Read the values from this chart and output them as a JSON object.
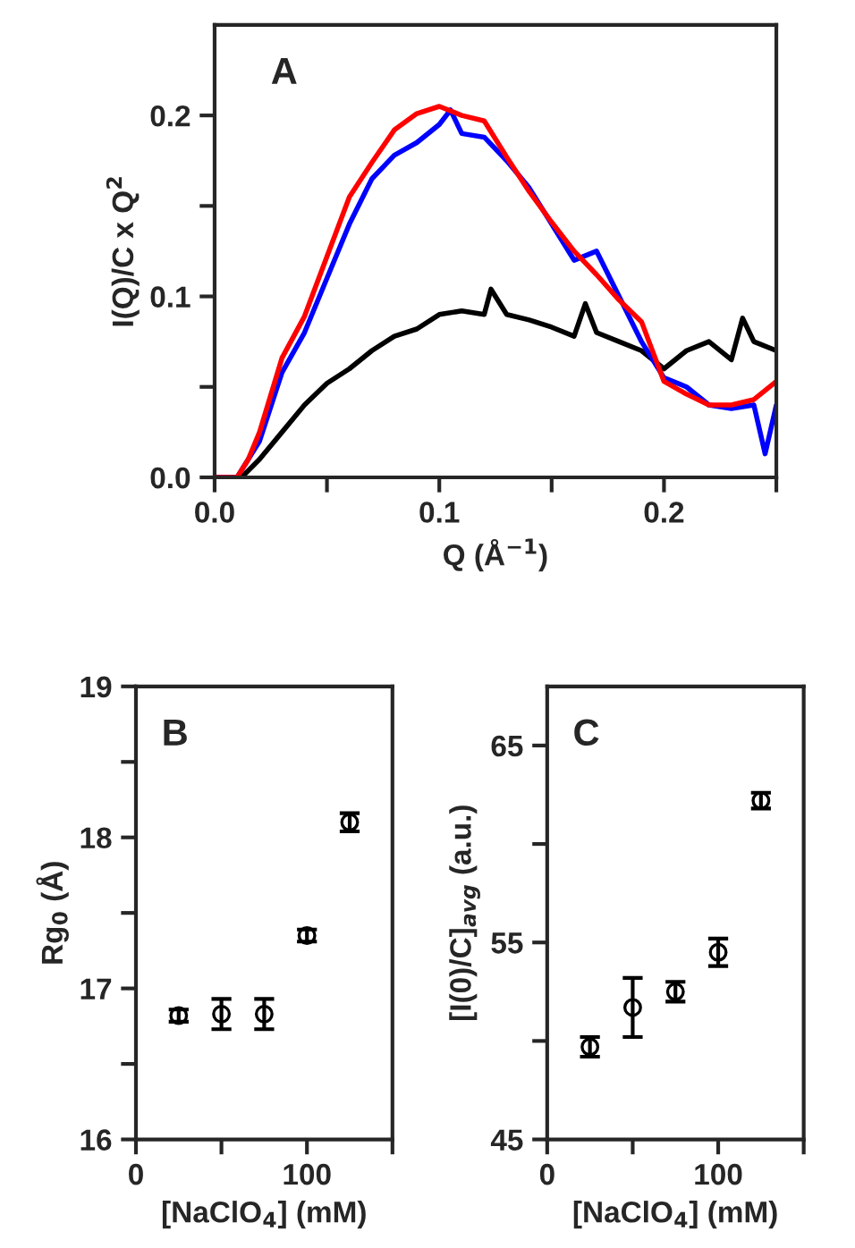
{
  "chart_data": [
    {
      "type": "line",
      "xlabel": "Q (Å$^{−1}$)",
      "ylabel": "I(Q)/C x Q$^{2}$",
      "annotations": [
        "A"
      ],
      "xlim": [
        0,
        0.25
      ],
      "ylim": [
        0,
        0.25
      ],
      "xticks": [
        {
          "value": 0,
          "label": "0.0"
        },
        {
          "value": 0.05,
          "label": null
        },
        0.1,
        {
          "value": 0.15,
          "label": null
        },
        0.2,
        {
          "value": 0.25,
          "label": null
        }
      ],
      "yticks": [
        {
          "value": 0,
          "label": "0.0"
        },
        {
          "value": 0.05,
          "label": null
        },
        0.1,
        {
          "value": 0.15,
          "label": null
        },
        0.2
      ],
      "grid": false,
      "marker": "none",
      "line_style": "solid",
      "series": [
        {
          "color": "#000000",
          "x": [
            0,
            0.012,
            0.02,
            0.03,
            0.04,
            0.05,
            0.06,
            0.07,
            0.08,
            0.09,
            0.1,
            0.11,
            0.12,
            0.123,
            0.13,
            0.14,
            0.15,
            0.16,
            0.165,
            0.17,
            0.18,
            0.19,
            0.2,
            0.21,
            0.22,
            0.23,
            0.235,
            0.24,
            0.25
          ],
          "values": [
            0,
            0,
            0.01,
            0.025,
            0.04,
            0.052,
            0.06,
            0.07,
            0.078,
            0.082,
            0.09,
            0.092,
            0.09,
            0.104,
            0.09,
            0.087,
            0.083,
            0.078,
            0.096,
            0.08,
            0.075,
            0.07,
            0.06,
            0.07,
            0.075,
            0.065,
            0.088,
            0.075,
            0.07
          ]
        },
        {
          "color": "#0000ff",
          "x": [
            0,
            0.01,
            0.015,
            0.02,
            0.03,
            0.04,
            0.05,
            0.06,
            0.07,
            0.08,
            0.09,
            0.1,
            0.105,
            0.11,
            0.12,
            0.13,
            0.14,
            0.15,
            0.16,
            0.17,
            0.18,
            0.19,
            0.2,
            0.21,
            0.22,
            0.23,
            0.24,
            0.245,
            0.25
          ],
          "values": [
            0,
            0,
            0.01,
            0.02,
            0.058,
            0.08,
            0.11,
            0.14,
            0.165,
            0.178,
            0.185,
            0.195,
            0.203,
            0.19,
            0.188,
            0.175,
            0.16,
            0.14,
            0.12,
            0.125,
            0.1,
            0.075,
            0.055,
            0.05,
            0.04,
            0.038,
            0.04,
            0.013,
            0.04
          ]
        },
        {
          "color": "#ff0000",
          "x": [
            0,
            0.01,
            0.015,
            0.02,
            0.03,
            0.04,
            0.05,
            0.06,
            0.07,
            0.08,
            0.09,
            0.1,
            0.11,
            0.12,
            0.13,
            0.14,
            0.15,
            0.16,
            0.17,
            0.18,
            0.19,
            0.2,
            0.21,
            0.22,
            0.23,
            0.24,
            0.25
          ],
          "values": [
            0,
            0,
            0.01,
            0.025,
            0.066,
            0.089,
            0.122,
            0.155,
            0.174,
            0.192,
            0.201,
            0.205,
            0.2,
            0.197,
            0.177,
            0.158,
            0.141,
            0.125,
            0.112,
            0.098,
            0.086,
            0.053,
            0.046,
            0.04,
            0.04,
            0.043,
            0.053
          ]
        }
      ]
    },
    {
      "type": "scatter",
      "xlabel": "[NaClO$_{4}$] (mM)",
      "ylabel": "Rg$_{0}$ (Å)",
      "annotations": [
        "B"
      ],
      "xlim": [
        0,
        150
      ],
      "ylim": [
        16,
        19
      ],
      "xticks": [
        0,
        {
          "value": 50,
          "label": null
        },
        100,
        {
          "value": 150,
          "label": null
        }
      ],
      "yticks": [
        16,
        {
          "value": 16.5,
          "label": null
        },
        17,
        {
          "value": 17.5,
          "label": null
        },
        18,
        {
          "value": 18.5,
          "label": null
        },
        19
      ],
      "grid": false,
      "marker": "circle",
      "x": [
        25,
        50,
        75,
        100,
        125
      ],
      "values": [
        16.82,
        16.83,
        16.83,
        17.35,
        18.1
      ],
      "errors": [
        0.04,
        0.1,
        0.1,
        0.04,
        0.06
      ],
      "color": "#000000"
    },
    {
      "type": "scatter",
      "xlabel": "[NaClO$_{4}$] (mM)",
      "ylabel": "[I(0)/C]$_{avg}$ (a.u.)",
      "annotations": [
        "C"
      ],
      "xlim": [
        0,
        150
      ],
      "ylim": [
        45,
        68
      ],
      "xticks": [
        0,
        {
          "value": 50,
          "label": null
        },
        100,
        {
          "value": 150,
          "label": null
        }
      ],
      "yticks": [
        45,
        {
          "value": 50,
          "label": null
        },
        55,
        {
          "value": 60,
          "label": null
        },
        65
      ],
      "grid": false,
      "marker": "circle",
      "x": [
        25,
        50,
        75,
        100,
        125
      ],
      "values": [
        49.7,
        51.7,
        52.5,
        54.5,
        62.2
      ],
      "errors": [
        0.5,
        1.5,
        0.5,
        0.7,
        0.4
      ],
      "color": "#000000"
    }
  ]
}
